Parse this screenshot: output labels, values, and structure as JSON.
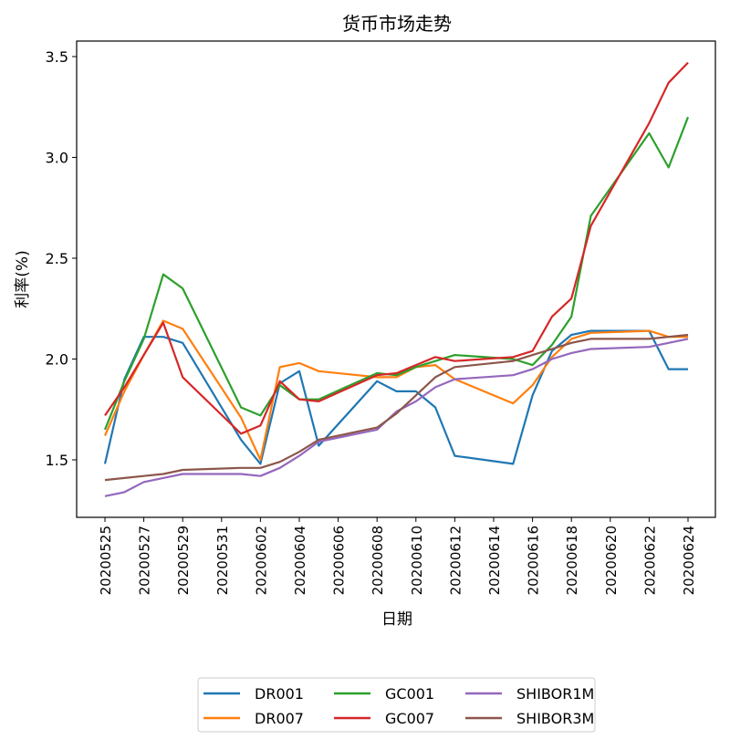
{
  "chart_data": {
    "type": "line",
    "title": "货币市场走势",
    "xlabel": "日期",
    "ylabel": "利率(%)",
    "ylim": [
      1.22,
      3.6
    ],
    "yticks": [
      1.5,
      2.0,
      2.5,
      3.0,
      3.5
    ],
    "grid": false,
    "legend_position": "bottom-center",
    "x": [
      "20200525",
      "20200526",
      "20200527",
      "20200528",
      "20200529",
      "20200601",
      "20200602",
      "20200603",
      "20200604",
      "20200605",
      "20200608",
      "20200609",
      "20200610",
      "20200611",
      "20200612",
      "20200615",
      "20200616",
      "20200617",
      "20200618",
      "20200619",
      "20200622",
      "20200623",
      "20200624"
    ],
    "xticks": [
      "20200525",
      "20200527",
      "20200529",
      "20200531",
      "20200602",
      "20200604",
      "20200606",
      "20200608",
      "20200610",
      "20200612",
      "20200614",
      "20200616",
      "20200618",
      "20200620",
      "20200622",
      "20200624"
    ],
    "series": [
      {
        "name": "DR001",
        "color": "#1f77b4",
        "values": [
          1.48,
          1.9,
          2.11,
          2.11,
          2.08,
          1.6,
          1.48,
          1.88,
          1.94,
          1.57,
          1.89,
          1.84,
          1.84,
          1.76,
          1.52,
          1.48,
          1.82,
          2.04,
          2.12,
          2.14,
          2.14,
          1.95,
          1.95
        ]
      },
      {
        "name": "DR007",
        "color": "#ff7f0e",
        "values": [
          1.62,
          1.84,
          2.02,
          2.19,
          2.15,
          1.71,
          1.5,
          1.96,
          1.98,
          1.94,
          1.91,
          1.91,
          1.96,
          1.97,
          1.9,
          1.78,
          1.87,
          2.01,
          2.1,
          2.13,
          2.14,
          2.11,
          2.11
        ]
      },
      {
        "name": "GC001",
        "color": "#2ca02c",
        "values": [
          1.65,
          1.89,
          2.1,
          2.42,
          2.35,
          1.76,
          1.72,
          1.87,
          1.8,
          1.8,
          1.93,
          1.92,
          1.96,
          1.99,
          2.02,
          2.0,
          1.97,
          2.07,
          2.21,
          2.71,
          3.12,
          2.95,
          3.2
        ]
      },
      {
        "name": "GC007",
        "color": "#d62728",
        "values": [
          1.72,
          1.86,
          2.02,
          2.18,
          1.91,
          1.63,
          1.67,
          1.89,
          1.8,
          1.79,
          1.92,
          1.93,
          1.97,
          2.01,
          1.99,
          2.01,
          2.04,
          2.21,
          2.3,
          2.66,
          3.17,
          3.37,
          3.47
        ]
      },
      {
        "name": "SHIBOR1M",
        "color": "#9467bd",
        "values": [
          1.32,
          1.34,
          1.39,
          1.41,
          1.43,
          1.43,
          1.42,
          1.46,
          1.52,
          1.59,
          1.65,
          1.74,
          1.79,
          1.86,
          1.9,
          1.92,
          1.95,
          2.0,
          2.03,
          2.05,
          2.06,
          2.08,
          2.1
        ]
      },
      {
        "name": "SHIBOR3M",
        "color": "#8c564b",
        "values": [
          1.4,
          1.41,
          1.42,
          1.43,
          1.45,
          1.46,
          1.46,
          1.49,
          1.54,
          1.6,
          1.66,
          1.73,
          1.82,
          1.91,
          1.96,
          1.99,
          2.02,
          2.05,
          2.08,
          2.1,
          2.1,
          2.11,
          2.12
        ]
      }
    ]
  }
}
